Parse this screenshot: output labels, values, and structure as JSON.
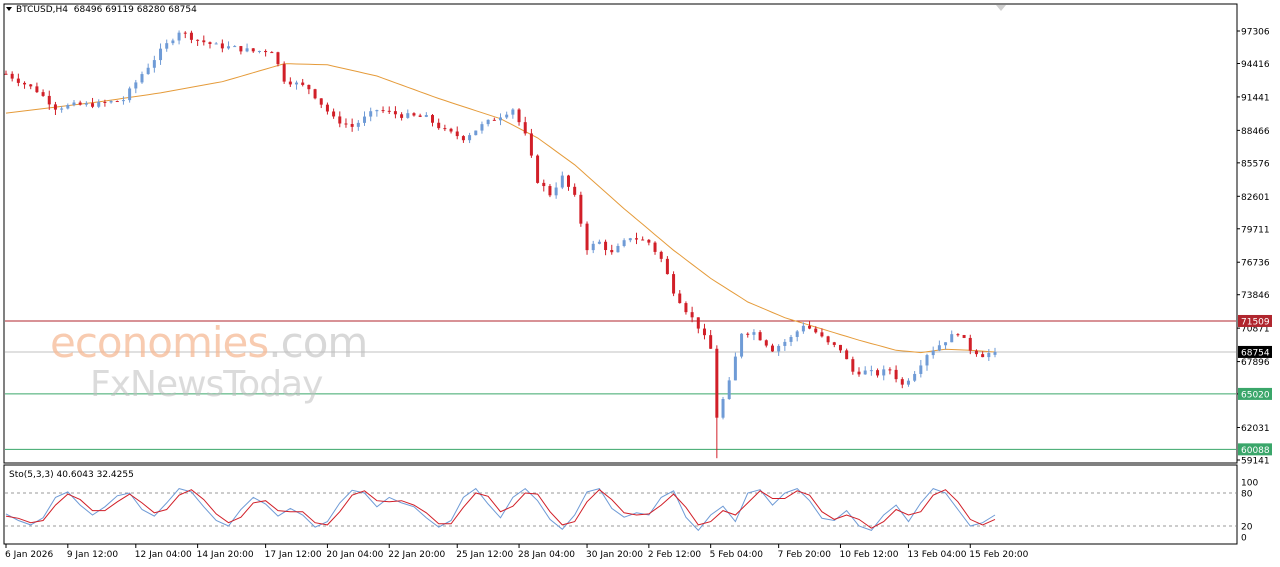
{
  "header": {
    "symbol_label": "BTCUSD,H4",
    "ohlc_label": "68496 69119 68280 68754"
  },
  "indicator": {
    "label": "Sto(5,3,3) 40.6043 32.4255"
  },
  "watermark": {
    "part1": "economies",
    "part2": ".com",
    "line2": "FxNewsToday"
  },
  "colors": {
    "bull": "#6f9bd6",
    "bear": "#d11f28",
    "ma": "#e59b3a",
    "resistance": "#b0262e",
    "support": "#3aa66a",
    "current": "#c0c0c0",
    "sto_main": "#6f9bd6",
    "sto_signal": "#d11f28"
  },
  "chart_data": [
    {
      "type": "candlestick",
      "symbol": "BTCUSD",
      "timeframe": "H4",
      "open": 68496,
      "high": 69119,
      "low": 68280,
      "close": 68754,
      "y_ticks": [
        97306,
        94416,
        91441,
        88466,
        85576,
        82601,
        79711,
        76736,
        73846,
        70871,
        67896,
        65021,
        62031,
        59141
      ],
      "ylim": [
        59000,
        99000
      ],
      "x_labels": [
        "6 Jan 2026",
        "9 Jan 12:00",
        "12 Jan 04:00",
        "14 Jan 20:00",
        "17 Jan 12:00",
        "20 Jan 04:00",
        "22 Jan 20:00",
        "25 Jan 12:00",
        "28 Jan 04:00",
        "30 Jan 20:00",
        "2 Feb 12:00",
        "5 Feb 04:00",
        "7 Feb 20:00",
        "10 Feb 12:00",
        "13 Feb 04:00",
        "15 Feb 20:00"
      ],
      "horizontal_levels": [
        {
          "value": 71509,
          "label": "71509",
          "style": "resistance"
        },
        {
          "value": 68754,
          "label": "68754",
          "style": "current"
        },
        {
          "value": 65020,
          "label": "65020",
          "style": "support"
        },
        {
          "value": 60088,
          "label": "60088",
          "style": "support"
        }
      ],
      "price_path": [
        [
          0,
          93500
        ],
        [
          5,
          92000
        ],
        [
          8,
          90500
        ],
        [
          11,
          90700
        ],
        [
          15,
          90800
        ],
        [
          19,
          91200
        ],
        [
          22,
          93500
        ],
        [
          25,
          95500
        ],
        [
          28,
          97300
        ],
        [
          31,
          96500
        ],
        [
          34,
          96000
        ],
        [
          37,
          95800
        ],
        [
          40,
          95500
        ],
        [
          43,
          95600
        ],
        [
          45,
          93000
        ],
        [
          49,
          92200
        ],
        [
          53,
          89500
        ],
        [
          56,
          88800
        ],
        [
          60,
          90300
        ],
        [
          64,
          89800
        ],
        [
          68,
          89600
        ],
        [
          71,
          88400
        ],
        [
          74,
          87800
        ],
        [
          77,
          88900
        ],
        [
          80,
          89800
        ],
        [
          82,
          90400
        ],
        [
          84,
          88000
        ],
        [
          86,
          84000
        ],
        [
          88,
          82800
        ],
        [
          90,
          84300
        ],
        [
          92,
          82500
        ],
        [
          94,
          78000
        ],
        [
          96,
          78500
        ],
        [
          98,
          77500
        ],
        [
          101,
          79000
        ],
        [
          104,
          78500
        ],
        [
          106,
          77000
        ],
        [
          108,
          74200
        ],
        [
          110,
          72500
        ],
        [
          112,
          71000
        ],
        [
          114,
          69000
        ],
        [
          115,
          63000
        ],
        [
          117,
          66000
        ],
        [
          119,
          70500
        ],
        [
          121,
          70500
        ],
        [
          124,
          69000
        ],
        [
          127,
          70000
        ],
        [
          129,
          71200
        ],
        [
          131,
          70500
        ],
        [
          133,
          69500
        ],
        [
          135,
          69000
        ],
        [
          137,
          67000
        ],
        [
          139,
          67000
        ],
        [
          141,
          66800
        ],
        [
          143,
          67200
        ],
        [
          145,
          65800
        ],
        [
          147,
          67000
        ],
        [
          149,
          68600
        ],
        [
          152,
          69800
        ],
        [
          154,
          70500
        ],
        [
          156,
          69000
        ],
        [
          158,
          68500
        ],
        [
          160,
          68754
        ]
      ],
      "ma_path": [
        [
          0,
          90000
        ],
        [
          15,
          91000
        ],
        [
          25,
          91800
        ],
        [
          35,
          92800
        ],
        [
          45,
          94400
        ],
        [
          52,
          94300
        ],
        [
          60,
          93300
        ],
        [
          70,
          91300
        ],
        [
          80,
          89500
        ],
        [
          86,
          87800
        ],
        [
          92,
          85400
        ],
        [
          100,
          81500
        ],
        [
          108,
          77800
        ],
        [
          114,
          75300
        ],
        [
          120,
          73200
        ],
        [
          126,
          71800
        ],
        [
          132,
          70800
        ],
        [
          138,
          69800
        ],
        [
          144,
          68900
        ],
        [
          148,
          68700
        ],
        [
          152,
          69000
        ],
        [
          156,
          68900
        ],
        [
          160,
          68750
        ]
      ]
    },
    {
      "type": "line",
      "name": "Sto(5,3,3)",
      "main_value": 40.6043,
      "signal_value": 32.4255,
      "ylim": [
        0,
        100
      ],
      "levels": [
        80,
        20
      ],
      "y_ticks": [
        "100",
        "80",
        "20",
        "0"
      ],
      "main_path": [
        [
          0,
          42
        ],
        [
          2,
          30
        ],
        [
          4,
          22
        ],
        [
          6,
          35
        ],
        [
          8,
          72
        ],
        [
          10,
          82
        ],
        [
          12,
          58
        ],
        [
          14,
          40
        ],
        [
          16,
          55
        ],
        [
          18,
          75
        ],
        [
          20,
          80
        ],
        [
          22,
          50
        ],
        [
          24,
          38
        ],
        [
          26,
          62
        ],
        [
          28,
          88
        ],
        [
          30,
          82
        ],
        [
          32,
          55
        ],
        [
          34,
          30
        ],
        [
          36,
          20
        ],
        [
          38,
          50
        ],
        [
          40,
          72
        ],
        [
          42,
          60
        ],
        [
          44,
          38
        ],
        [
          46,
          52
        ],
        [
          48,
          40
        ],
        [
          50,
          18
        ],
        [
          52,
          28
        ],
        [
          54,
          62
        ],
        [
          56,
          85
        ],
        [
          58,
          80
        ],
        [
          60,
          55
        ],
        [
          62,
          72
        ],
        [
          64,
          62
        ],
        [
          66,
          55
        ],
        [
          68,
          35
        ],
        [
          70,
          18
        ],
        [
          72,
          30
        ],
        [
          74,
          72
        ],
        [
          76,
          88
        ],
        [
          78,
          60
        ],
        [
          80,
          35
        ],
        [
          82,
          72
        ],
        [
          84,
          88
        ],
        [
          86,
          66
        ],
        [
          88,
          32
        ],
        [
          90,
          14
        ],
        [
          92,
          40
        ],
        [
          94,
          82
        ],
        [
          96,
          88
        ],
        [
          98,
          52
        ],
        [
          100,
          36
        ],
        [
          102,
          44
        ],
        [
          104,
          40
        ],
        [
          106,
          72
        ],
        [
          108,
          84
        ],
        [
          110,
          36
        ],
        [
          112,
          12
        ],
        [
          114,
          40
        ],
        [
          116,
          56
        ],
        [
          118,
          28
        ],
        [
          120,
          80
        ],
        [
          122,
          86
        ],
        [
          124,
          58
        ],
        [
          126,
          80
        ],
        [
          128,
          88
        ],
        [
          130,
          66
        ],
        [
          132,
          34
        ],
        [
          134,
          30
        ],
        [
          136,
          48
        ],
        [
          138,
          20
        ],
        [
          140,
          12
        ],
        [
          142,
          40
        ],
        [
          144,
          58
        ],
        [
          146,
          28
        ],
        [
          148,
          62
        ],
        [
          150,
          88
        ],
        [
          152,
          80
        ],
        [
          154,
          50
        ],
        [
          156,
          20
        ],
        [
          158,
          26
        ],
        [
          160,
          40
        ]
      ],
      "signal_path": [
        [
          0,
          38
        ],
        [
          2,
          34
        ],
        [
          4,
          26
        ],
        [
          6,
          30
        ],
        [
          8,
          58
        ],
        [
          10,
          78
        ],
        [
          12,
          68
        ],
        [
          14,
          48
        ],
        [
          16,
          48
        ],
        [
          18,
          64
        ],
        [
          20,
          78
        ],
        [
          22,
          62
        ],
        [
          24,
          44
        ],
        [
          26,
          50
        ],
        [
          28,
          76
        ],
        [
          30,
          86
        ],
        [
          32,
          68
        ],
        [
          34,
          42
        ],
        [
          36,
          26
        ],
        [
          38,
          36
        ],
        [
          40,
          62
        ],
        [
          42,
          66
        ],
        [
          44,
          48
        ],
        [
          46,
          46
        ],
        [
          48,
          46
        ],
        [
          50,
          26
        ],
        [
          52,
          22
        ],
        [
          54,
          46
        ],
        [
          56,
          76
        ],
        [
          58,
          84
        ],
        [
          60,
          66
        ],
        [
          62,
          64
        ],
        [
          64,
          66
        ],
        [
          66,
          58
        ],
        [
          68,
          44
        ],
        [
          70,
          24
        ],
        [
          72,
          24
        ],
        [
          74,
          54
        ],
        [
          76,
          80
        ],
        [
          78,
          74
        ],
        [
          80,
          46
        ],
        [
          82,
          56
        ],
        [
          84,
          80
        ],
        [
          86,
          78
        ],
        [
          88,
          46
        ],
        [
          90,
          22
        ],
        [
          92,
          28
        ],
        [
          94,
          64
        ],
        [
          96,
          86
        ],
        [
          98,
          68
        ],
        [
          100,
          44
        ],
        [
          102,
          40
        ],
        [
          104,
          42
        ],
        [
          106,
          58
        ],
        [
          108,
          78
        ],
        [
          110,
          54
        ],
        [
          112,
          22
        ],
        [
          114,
          28
        ],
        [
          116,
          48
        ],
        [
          118,
          40
        ],
        [
          120,
          62
        ],
        [
          122,
          84
        ],
        [
          124,
          70
        ],
        [
          126,
          70
        ],
        [
          128,
          84
        ],
        [
          130,
          76
        ],
        [
          132,
          46
        ],
        [
          134,
          32
        ],
        [
          136,
          40
        ],
        [
          138,
          32
        ],
        [
          140,
          16
        ],
        [
          142,
          28
        ],
        [
          144,
          50
        ],
        [
          146,
          40
        ],
        [
          148,
          46
        ],
        [
          150,
          76
        ],
        [
          152,
          86
        ],
        [
          154,
          64
        ],
        [
          156,
          32
        ],
        [
          158,
          22
        ],
        [
          160,
          32
        ]
      ]
    }
  ]
}
